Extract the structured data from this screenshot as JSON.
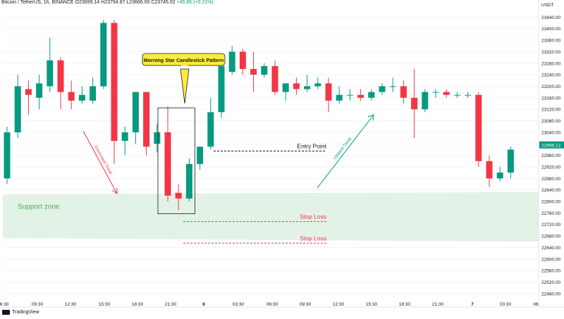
{
  "header": {
    "symbol": "Bitcoin / TetherUS, 1h, BINANCE",
    "ohlc": "O23699.14 H23794.87 L23666.00 C23745.02",
    "change": "+45.85 (+0.21%)"
  },
  "footer": {
    "brand": "TradingView"
  },
  "colors": {
    "up": "#089981",
    "down": "#f23645",
    "support": "#e3f2e6",
    "support_text": "#4caf50",
    "stop": "#f23645",
    "callout": "#ffeb3b"
  },
  "chart_data": {
    "type": "candlestick",
    "currency": "USDT",
    "ylim": [
      22460,
      23480
    ],
    "y_ticks": [
      22480,
      22520,
      22560,
      22600,
      22640,
      22680,
      22720,
      22760,
      22800,
      22840,
      22880,
      22920,
      22960,
      23000,
      23040,
      23080,
      23120,
      23160,
      23200,
      23240,
      23280,
      23320,
      23360,
      23400,
      23440
    ],
    "x_ticks": [
      "6:30",
      "09:30",
      "12:30",
      "15:30",
      "18:30",
      "21:30",
      "6",
      "03:30",
      "06:30",
      "09:30",
      "12:30",
      "15:30",
      "18:30",
      "21:30",
      "7",
      "03:30",
      "06"
    ],
    "last_price": "22996.12",
    "candles": [
      {
        "o": 22880,
        "h": 23060,
        "l": 22860,
        "c": 23040
      },
      {
        "o": 23040,
        "h": 23240,
        "l": 23020,
        "c": 23200
      },
      {
        "o": 23190,
        "h": 23220,
        "l": 23100,
        "c": 23170
      },
      {
        "o": 23160,
        "h": 23240,
        "l": 23120,
        "c": 23210
      },
      {
        "o": 23200,
        "h": 23370,
        "l": 23180,
        "c": 23290
      },
      {
        "o": 23290,
        "h": 23300,
        "l": 23120,
        "c": 23180
      },
      {
        "o": 23180,
        "h": 23220,
        "l": 23120,
        "c": 23150
      },
      {
        "o": 23150,
        "h": 23200,
        "l": 23140,
        "c": 23170
      },
      {
        "o": 23150,
        "h": 23230,
        "l": 23140,
        "c": 23200
      },
      {
        "o": 23200,
        "h": 23430,
        "l": 23190,
        "c": 23420
      },
      {
        "o": 23420,
        "h": 23430,
        "l": 22930,
        "c": 23010
      },
      {
        "o": 23010,
        "h": 23060,
        "l": 22960,
        "c": 23040
      },
      {
        "o": 23040,
        "h": 23180,
        "l": 23000,
        "c": 23180
      },
      {
        "o": 23180,
        "h": 23180,
        "l": 22960,
        "c": 22990
      },
      {
        "o": 23000,
        "h": 23070,
        "l": 22970,
        "c": 23040
      },
      {
        "o": 23040,
        "h": 23130,
        "l": 22800,
        "c": 22820
      },
      {
        "o": 22830,
        "h": 22860,
        "l": 22770,
        "c": 22810
      },
      {
        "o": 22810,
        "h": 22950,
        "l": 22800,
        "c": 22930
      },
      {
        "o": 22930,
        "h": 22990,
        "l": 22910,
        "c": 22990
      },
      {
        "o": 22990,
        "h": 23160,
        "l": 22980,
        "c": 23110
      },
      {
        "o": 23110,
        "h": 23290,
        "l": 23090,
        "c": 23270
      },
      {
        "o": 23250,
        "h": 23340,
        "l": 23240,
        "c": 23320
      },
      {
        "o": 23320,
        "h": 23330,
        "l": 23240,
        "c": 23260
      },
      {
        "o": 23260,
        "h": 23320,
        "l": 23180,
        "c": 23240
      },
      {
        "o": 23240,
        "h": 23280,
        "l": 23230,
        "c": 23270
      },
      {
        "o": 23270,
        "h": 23290,
        "l": 23170,
        "c": 23180
      },
      {
        "o": 23180,
        "h": 23210,
        "l": 23150,
        "c": 23210
      },
      {
        "o": 23210,
        "h": 23230,
        "l": 23170,
        "c": 23190
      },
      {
        "o": 23190,
        "h": 23240,
        "l": 23180,
        "c": 23200
      },
      {
        "o": 23200,
        "h": 23230,
        "l": 23190,
        "c": 23210
      },
      {
        "o": 23210,
        "h": 23230,
        "l": 23110,
        "c": 23150
      },
      {
        "o": 23150,
        "h": 23200,
        "l": 23140,
        "c": 23170
      },
      {
        "o": 23170,
        "h": 23190,
        "l": 23150,
        "c": 23170
      },
      {
        "o": 23170,
        "h": 23190,
        "l": 23150,
        "c": 23160
      },
      {
        "o": 23160,
        "h": 23190,
        "l": 23150,
        "c": 23180
      },
      {
        "o": 23180,
        "h": 23210,
        "l": 23170,
        "c": 23200
      },
      {
        "o": 23200,
        "h": 23230,
        "l": 23180,
        "c": 23200
      },
      {
        "o": 23200,
        "h": 23220,
        "l": 23140,
        "c": 23160
      },
      {
        "o": 23160,
        "h": 23260,
        "l": 23020,
        "c": 23120
      },
      {
        "o": 23120,
        "h": 23190,
        "l": 23110,
        "c": 23180
      },
      {
        "o": 23180,
        "h": 23190,
        "l": 23160,
        "c": 23180
      },
      {
        "o": 23180,
        "h": 23190,
        "l": 23160,
        "c": 23170
      },
      {
        "o": 23170,
        "h": 23180,
        "l": 23160,
        "c": 23170
      },
      {
        "o": 23170,
        "h": 23180,
        "l": 23160,
        "c": 23170
      },
      {
        "o": 23170,
        "h": 23180,
        "l": 22920,
        "c": 22940
      },
      {
        "o": 22940,
        "h": 22960,
        "l": 22850,
        "c": 22880
      },
      {
        "o": 22880,
        "h": 22920,
        "l": 22870,
        "c": 22900
      },
      {
        "o": 22900,
        "h": 22990,
        "l": 22880,
        "c": 22980
      }
    ],
    "annotations": {
      "callout": "Morning Star Candlestick Pattern",
      "support": "Support zone",
      "entry": "Entry Point",
      "stop1": "Stop Loss",
      "stop2": "Stop Loss",
      "down_trend": "Downward Trend",
      "up_trend": "Upward Trend"
    },
    "levels": {
      "support_top": 22825,
      "support_bottom": 22665,
      "entry": 22975,
      "stop1": 22730,
      "stop2": 22655
    },
    "pattern": {
      "from_index": 15,
      "to_index": 17,
      "top": 23125,
      "bottom": 22757
    }
  }
}
